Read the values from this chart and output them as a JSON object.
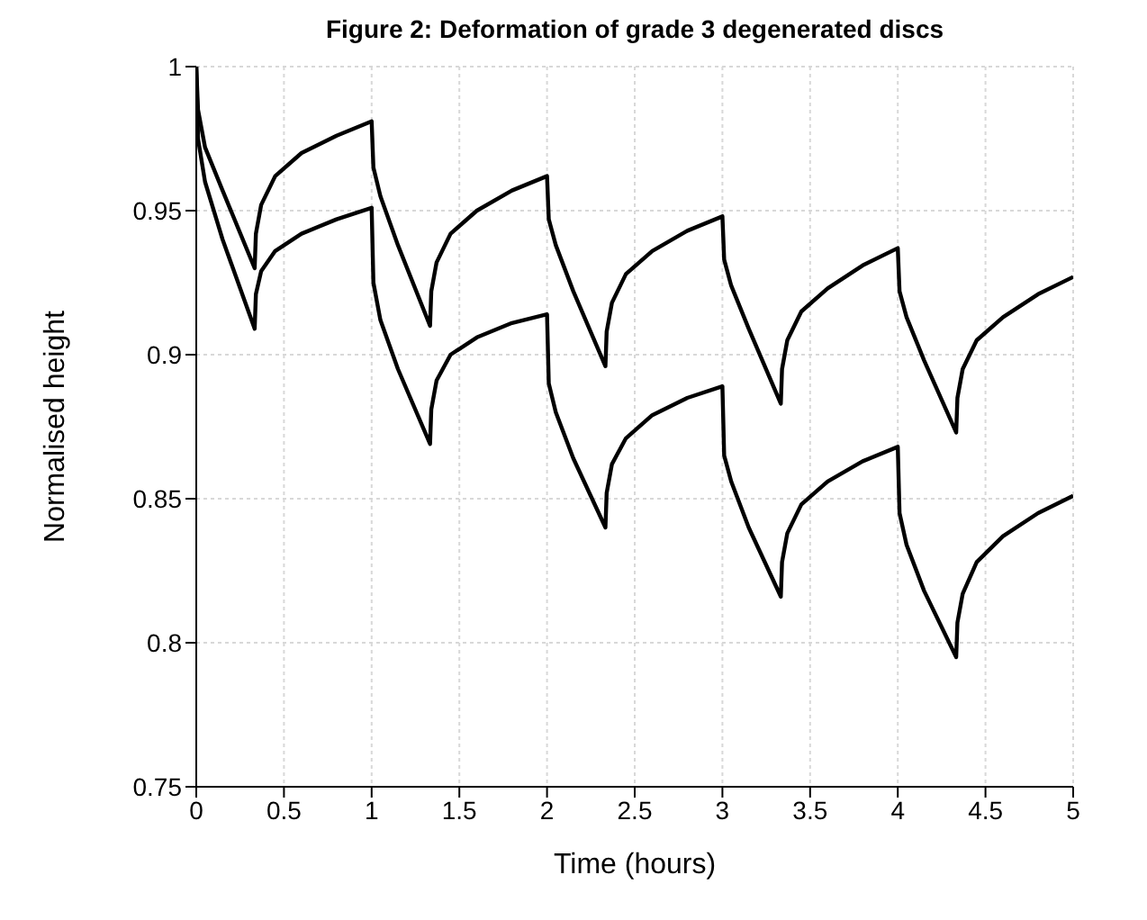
{
  "chart_data": {
    "type": "line",
    "title": "Figure 2: Deformation of grade 3 degenerated discs",
    "xlabel": "Time (hours)",
    "ylabel": "Normalised height",
    "xlim": [
      0,
      5
    ],
    "xticks": [
      0,
      0.5,
      1,
      1.5,
      2,
      2.5,
      3,
      3.5,
      4,
      4.5,
      5
    ],
    "ylim": [
      0.75,
      1
    ],
    "yticks": [
      0.75,
      0.8,
      0.85,
      0.9,
      0.95,
      1
    ],
    "grid": true,
    "legend": false,
    "marker": "none",
    "line_style": "solid",
    "x": [
      0,
      0.01,
      0.05,
      0.15,
      0.333,
      0.34,
      0.37,
      0.45,
      0.6,
      0.8,
      1,
      1.01,
      1.05,
      1.15,
      1.333,
      1.34,
      1.37,
      1.45,
      1.6,
      1.8,
      2,
      2.01,
      2.05,
      2.15,
      2.333,
      2.34,
      2.37,
      2.45,
      2.6,
      2.8,
      3,
      3.01,
      3.05,
      3.15,
      3.333,
      3.34,
      3.37,
      3.45,
      3.6,
      3.8,
      4,
      4.01,
      4.05,
      4.15,
      4.333,
      4.34,
      4.37,
      4.45,
      4.6,
      4.8,
      5
    ],
    "series": [
      {
        "color": "#000000",
        "values": [
          1,
          0.985,
          0.972,
          0.957,
          0.93,
          0.942,
          0.952,
          0.962,
          0.97,
          0.976,
          0.981,
          0.965,
          0.955,
          0.938,
          0.91,
          0.922,
          0.932,
          0.942,
          0.95,
          0.957,
          0.962,
          0.947,
          0.938,
          0.922,
          0.896,
          0.908,
          0.918,
          0.928,
          0.936,
          0.943,
          0.948,
          0.933,
          0.924,
          0.909,
          0.883,
          0.895,
          0.905,
          0.915,
          0.923,
          0.931,
          0.937,
          0.922,
          0.913,
          0.898,
          0.873,
          0.885,
          0.895,
          0.905,
          0.913,
          0.921,
          0.927
        ]
      },
      {
        "color": "#000000",
        "values": [
          1,
          0.975,
          0.96,
          0.94,
          0.909,
          0.921,
          0.929,
          0.936,
          0.942,
          0.947,
          0.951,
          0.925,
          0.912,
          0.895,
          0.869,
          0.881,
          0.891,
          0.9,
          0.906,
          0.911,
          0.914,
          0.89,
          0.88,
          0.864,
          0.84,
          0.852,
          0.862,
          0.871,
          0.879,
          0.885,
          0.889,
          0.865,
          0.856,
          0.84,
          0.816,
          0.828,
          0.838,
          0.848,
          0.856,
          0.863,
          0.868,
          0.845,
          0.834,
          0.818,
          0.795,
          0.807,
          0.817,
          0.828,
          0.837,
          0.845,
          0.851
        ]
      }
    ]
  }
}
